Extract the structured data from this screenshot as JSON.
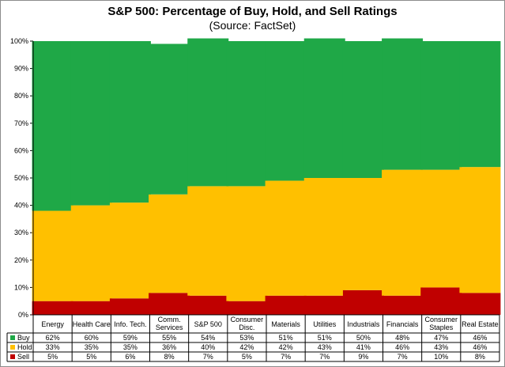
{
  "chart_data": {
    "type": "bar",
    "stacked": true,
    "title": "S&P 500: Percentage of Buy, Hold, and Sell Ratings",
    "subtitle": "(Source: FactSet)",
    "ylim": [
      0,
      100
    ],
    "yticks": [
      "0%",
      "10%",
      "20%",
      "30%",
      "40%",
      "50%",
      "60%",
      "70%",
      "80%",
      "90%",
      "100%"
    ],
    "grid": false,
    "legend": "data-table-left",
    "categories": [
      [
        "Energy"
      ],
      [
        "Health Care"
      ],
      [
        "Info. Tech."
      ],
      [
        "Comm.",
        "Services"
      ],
      [
        "S&P 500"
      ],
      [
        "Consumer",
        "Disc."
      ],
      [
        "Materials"
      ],
      [
        "Utilities"
      ],
      [
        "Industrials"
      ],
      [
        "Financials"
      ],
      [
        "Consumer",
        "Staples"
      ],
      [
        "Real Estate"
      ]
    ],
    "series": [
      {
        "name": "Buy",
        "color": "#1fa847",
        "values": [
          62,
          60,
          59,
          55,
          54,
          53,
          51,
          51,
          50,
          48,
          47,
          46
        ],
        "labels": [
          "62%",
          "60%",
          "59%",
          "55%",
          "54%",
          "53%",
          "51%",
          "51%",
          "50%",
          "48%",
          "47%",
          "46%"
        ]
      },
      {
        "name": "Hold",
        "color": "#ffc000",
        "values": [
          33,
          35,
          35,
          36,
          40,
          42,
          42,
          43,
          41,
          46,
          43,
          46
        ],
        "labels": [
          "33%",
          "35%",
          "35%",
          "36%",
          "40%",
          "42%",
          "42%",
          "43%",
          "41%",
          "46%",
          "43%",
          "46%"
        ]
      },
      {
        "name": "Sell",
        "color": "#c00000",
        "values": [
          5,
          5,
          6,
          8,
          7,
          5,
          7,
          7,
          9,
          7,
          10,
          8
        ],
        "labels": [
          "5%",
          "5%",
          "6%",
          "8%",
          "7%",
          "5%",
          "7%",
          "7%",
          "9%",
          "7%",
          "10%",
          "8%"
        ]
      }
    ]
  }
}
